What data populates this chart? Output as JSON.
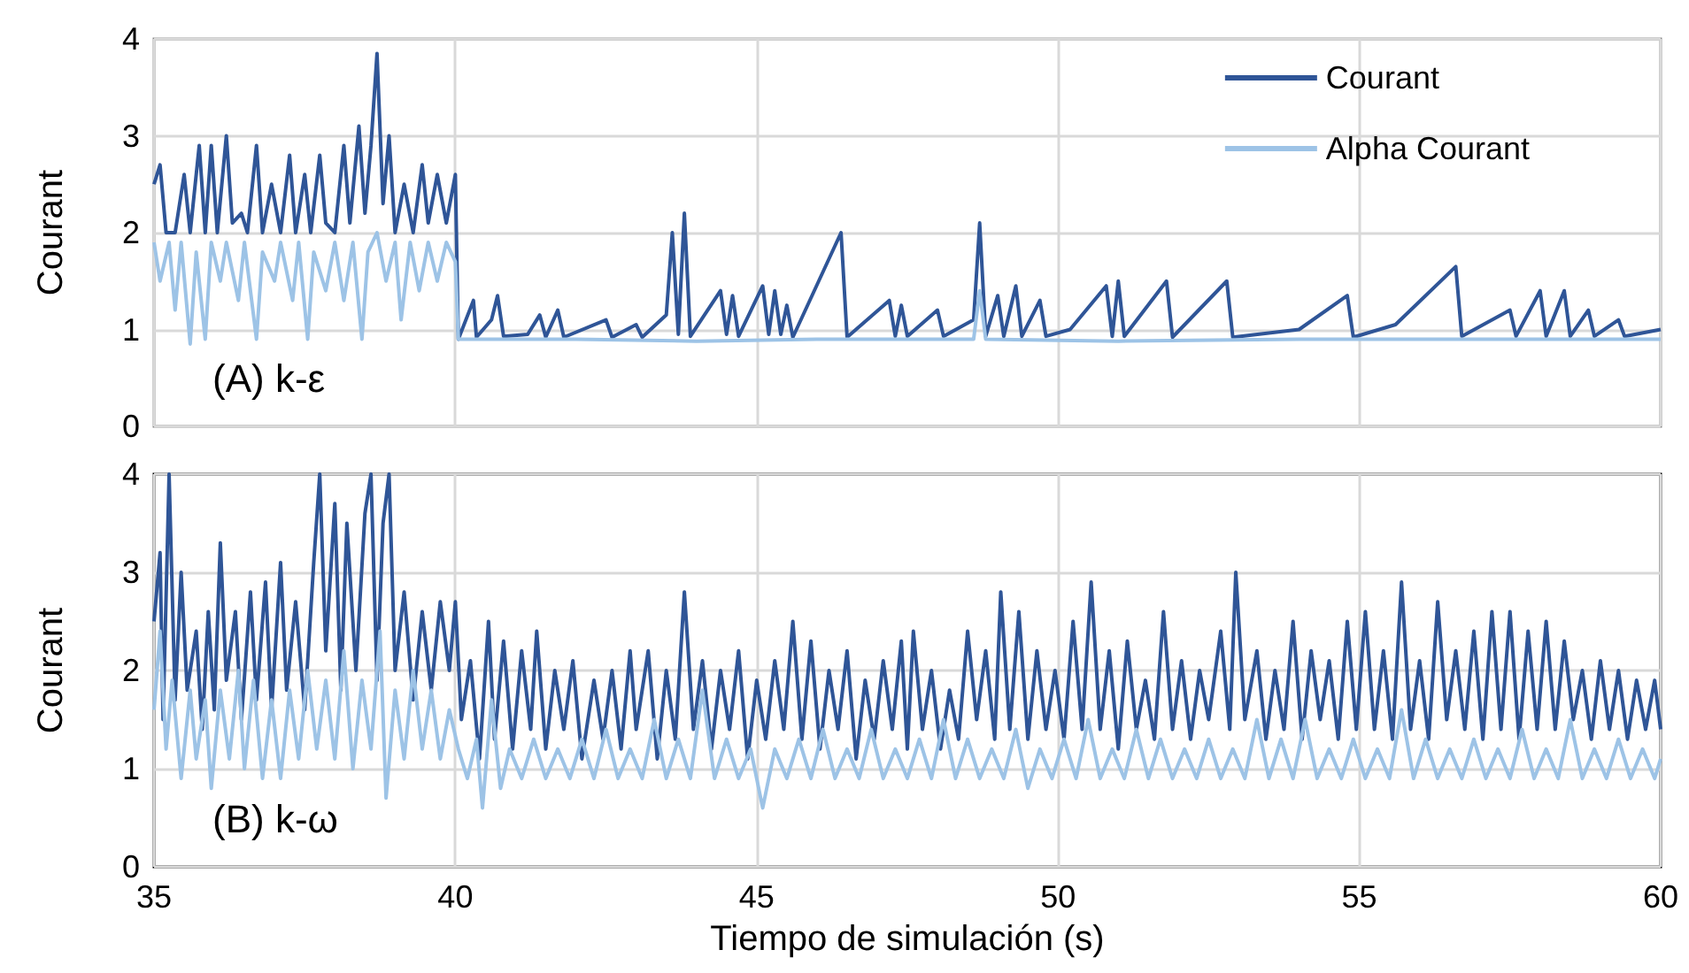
{
  "chart_data": [
    {
      "type": "line",
      "ylabel": "Courant",
      "annotations": [
        "(A) k-ε"
      ],
      "xlim": [
        35,
        60
      ],
      "xticks": [
        35,
        40,
        45,
        50,
        55,
        60
      ],
      "ylim": [
        0,
        4
      ],
      "yticks": [
        0,
        1,
        2,
        3,
        4
      ],
      "grid": true,
      "legend": "top right",
      "tick_labels": "y",
      "marker": "none",
      "line_style": "solid",
      "series": [
        {
          "name": "Courant",
          "color": "#2f5597",
          "x": [
            35.0,
            35.1,
            35.2,
            35.35,
            35.5,
            35.6,
            35.75,
            35.85,
            35.95,
            36.05,
            36.2,
            36.3,
            36.45,
            36.55,
            36.7,
            36.8,
            36.95,
            37.1,
            37.25,
            37.35,
            37.5,
            37.6,
            37.75,
            37.85,
            38.0,
            38.15,
            38.25,
            38.4,
            38.5,
            38.6,
            38.7,
            38.8,
            38.9,
            39.0,
            39.15,
            39.3,
            39.45,
            39.55,
            39.7,
            39.85,
            40.0,
            40.05,
            40.3,
            40.35,
            40.6,
            40.7,
            40.8,
            41.2,
            41.4,
            41.5,
            41.7,
            41.8,
            42.5,
            42.6,
            43.0,
            43.1,
            43.5,
            43.6,
            43.7,
            43.8,
            43.9,
            44.4,
            44.5,
            44.6,
            44.7,
            45.1,
            45.2,
            45.3,
            45.4,
            45.5,
            45.6,
            46.4,
            46.5,
            47.2,
            47.3,
            47.4,
            47.5,
            48.0,
            48.1,
            48.6,
            48.7,
            48.8,
            49.0,
            49.1,
            49.3,
            49.4,
            49.7,
            49.8,
            50.2,
            50.8,
            50.9,
            51.0,
            51.1,
            51.8,
            51.9,
            52.8,
            52.9,
            54.0,
            54.8,
            54.9,
            55.6,
            56.6,
            56.7,
            57.5,
            57.6,
            58.0,
            58.1,
            58.4,
            58.5,
            58.8,
            58.9,
            59.3,
            59.4,
            60.0
          ],
          "values": [
            2.5,
            2.7,
            2.0,
            2.0,
            2.6,
            2.0,
            2.9,
            2.0,
            2.9,
            2.0,
            3.0,
            2.1,
            2.2,
            2.0,
            2.9,
            2.0,
            2.5,
            2.0,
            2.8,
            2.0,
            2.6,
            2.0,
            2.8,
            2.1,
            2.0,
            2.9,
            2.1,
            3.1,
            2.2,
            2.9,
            3.85,
            2.3,
            3.0,
            2.0,
            2.5,
            2.0,
            2.7,
            2.1,
            2.6,
            2.1,
            2.6,
            0.9,
            1.3,
            0.92,
            1.1,
            1.35,
            0.93,
            0.95,
            1.15,
            0.92,
            1.2,
            0.92,
            1.1,
            0.92,
            1.05,
            0.92,
            1.15,
            2.0,
            0.95,
            2.2,
            0.93,
            1.4,
            0.95,
            1.35,
            0.93,
            1.45,
            0.95,
            1.4,
            0.95,
            1.25,
            0.92,
            2.0,
            0.92,
            1.3,
            0.93,
            1.25,
            0.93,
            1.2,
            0.93,
            1.1,
            2.1,
            0.93,
            1.35,
            0.93,
            1.45,
            0.93,
            1.3,
            0.93,
            1.0,
            1.45,
            0.93,
            1.5,
            0.93,
            1.5,
            0.92,
            1.5,
            0.92,
            1.0,
            1.35,
            0.92,
            1.05,
            1.65,
            0.93,
            1.2,
            0.93,
            1.4,
            0.93,
            1.4,
            0.93,
            1.2,
            0.93,
            1.1,
            0.93,
            1.0
          ]
        },
        {
          "name": "Alpha Courant",
          "color": "#9dc3e6",
          "x": [
            35.0,
            35.1,
            35.25,
            35.35,
            35.45,
            35.6,
            35.7,
            35.85,
            35.95,
            36.1,
            36.2,
            36.4,
            36.5,
            36.7,
            36.8,
            37.0,
            37.1,
            37.3,
            37.4,
            37.55,
            37.65,
            37.85,
            38.0,
            38.15,
            38.3,
            38.45,
            38.55,
            38.7,
            38.85,
            39.0,
            39.1,
            39.25,
            39.4,
            39.55,
            39.7,
            39.85,
            40.0,
            40.05,
            42,
            44,
            46,
            48.6,
            48.7,
            48.8,
            51,
            54,
            57,
            60
          ],
          "values": [
            1.9,
            1.5,
            1.9,
            1.2,
            1.9,
            0.85,
            1.8,
            0.9,
            1.9,
            1.5,
            1.9,
            1.3,
            1.9,
            0.9,
            1.8,
            1.5,
            1.9,
            1.3,
            1.9,
            0.9,
            1.8,
            1.4,
            1.9,
            1.3,
            1.9,
            0.9,
            1.8,
            2.0,
            1.5,
            1.9,
            1.1,
            1.9,
            1.4,
            1.9,
            1.5,
            1.9,
            1.7,
            0.9,
            0.9,
            0.88,
            0.9,
            0.9,
            1.4,
            0.9,
            0.88,
            0.9,
            0.9,
            0.9
          ]
        }
      ]
    },
    {
      "type": "line",
      "xlabel": "Tiempo de simulación (s)",
      "ylabel": "Courant",
      "annotations": [
        "(B) k-ω"
      ],
      "xlim": [
        35,
        60
      ],
      "xticks": [
        35,
        40,
        45,
        50,
        55,
        60
      ],
      "ylim": [
        0,
        4
      ],
      "yticks": [
        0,
        1,
        2,
        3,
        4
      ],
      "grid": true,
      "marker": "none",
      "line_style": "solid",
      "series": [
        {
          "color": "#2f5597",
          "x": [
            35.0,
            35.1,
            35.15,
            35.25,
            35.35,
            35.45,
            35.55,
            35.7,
            35.8,
            35.9,
            36.0,
            36.1,
            36.2,
            36.35,
            36.45,
            36.6,
            36.7,
            36.85,
            36.95,
            37.1,
            37.2,
            37.35,
            37.5,
            37.65,
            37.75,
            37.85,
            38.0,
            38.1,
            38.2,
            38.35,
            38.5,
            38.6,
            38.7,
            38.8,
            38.9,
            39.0,
            39.15,
            39.3,
            39.45,
            39.6,
            39.75,
            39.9,
            40.0,
            40.1,
            40.25,
            40.4,
            40.55,
            40.65,
            40.8,
            40.95,
            41.1,
            41.25,
            41.35,
            41.5,
            41.65,
            41.8,
            41.95,
            42.1,
            42.3,
            42.45,
            42.6,
            42.75,
            42.9,
            43.0,
            43.2,
            43.35,
            43.5,
            43.65,
            43.8,
            43.95,
            44.1,
            44.25,
            44.4,
            44.55,
            44.7,
            44.85,
            45.0,
            45.15,
            45.3,
            45.45,
            45.6,
            45.75,
            45.9,
            46.05,
            46.2,
            46.35,
            46.5,
            46.65,
            46.8,
            46.95,
            47.1,
            47.25,
            47.4,
            47.5,
            47.6,
            47.75,
            47.9,
            48.05,
            48.2,
            48.35,
            48.5,
            48.65,
            48.8,
            48.95,
            49.05,
            49.2,
            49.35,
            49.5,
            49.65,
            49.8,
            49.95,
            50.1,
            50.25,
            50.4,
            50.55,
            50.7,
            50.85,
            51.0,
            51.15,
            51.3,
            51.45,
            51.6,
            51.75,
            51.9,
            52.05,
            52.2,
            52.35,
            52.5,
            52.7,
            52.85,
            52.95,
            53.1,
            53.3,
            53.45,
            53.6,
            53.75,
            53.9,
            54.05,
            54.2,
            54.35,
            54.5,
            54.65,
            54.8,
            54.95,
            55.1,
            55.25,
            55.4,
            55.55,
            55.7,
            55.85,
            56.0,
            56.15,
            56.3,
            56.45,
            56.6,
            56.75,
            56.9,
            57.05,
            57.2,
            57.35,
            57.5,
            57.65,
            57.8,
            57.95,
            58.1,
            58.25,
            58.4,
            58.55,
            58.7,
            58.85,
            59.0,
            59.15,
            59.3,
            59.45,
            59.6,
            59.75,
            59.9,
            60.0
          ],
          "values": [
            2.5,
            3.2,
            1.5,
            4.0,
            1.7,
            3.0,
            1.8,
            2.4,
            1.4,
            2.6,
            1.6,
            3.3,
            1.9,
            2.6,
            1.5,
            2.8,
            1.7,
            2.9,
            1.6,
            3.1,
            1.8,
            2.7,
            1.6,
            3.1,
            4.0,
            2.2,
            3.7,
            1.8,
            3.5,
            2.0,
            3.6,
            4.0,
            1.9,
            3.5,
            4.0,
            2.0,
            2.8,
            1.7,
            2.6,
            1.8,
            2.7,
            2.0,
            2.7,
            1.5,
            2.1,
            1.1,
            2.5,
            1.3,
            2.3,
            1.2,
            2.2,
            1.4,
            2.4,
            1.2,
            2.0,
            1.4,
            2.1,
            1.1,
            1.9,
            1.3,
            2.0,
            1.2,
            2.2,
            1.4,
            2.2,
            1.1,
            2.0,
            1.3,
            2.8,
            1.4,
            2.1,
            1.2,
            2.0,
            1.4,
            2.2,
            1.1,
            1.9,
            1.3,
            2.1,
            1.4,
            2.5,
            1.3,
            2.3,
            1.2,
            2.0,
            1.4,
            2.2,
            1.1,
            1.9,
            1.3,
            2.1,
            1.4,
            2.3,
            1.2,
            2.4,
            1.4,
            2.0,
            1.2,
            1.8,
            1.3,
            2.4,
            1.5,
            2.2,
            1.3,
            2.8,
            1.4,
            2.6,
            1.3,
            2.2,
            1.4,
            2.0,
            1.3,
            2.5,
            1.4,
            2.9,
            1.4,
            2.2,
            1.2,
            2.3,
            1.4,
            1.9,
            1.3,
            2.6,
            1.4,
            2.1,
            1.3,
            2.0,
            1.5,
            2.4,
            1.4,
            3.0,
            1.5,
            2.2,
            1.3,
            2.0,
            1.4,
            2.5,
            1.3,
            2.2,
            1.5,
            2.1,
            1.3,
            2.5,
            1.4,
            2.6,
            1.4,
            2.2,
            1.3,
            2.9,
            1.4,
            2.1,
            1.3,
            2.7,
            1.5,
            2.2,
            1.4,
            2.4,
            1.3,
            2.6,
            1.4,
            2.6,
            1.3,
            2.4,
            1.4,
            2.5,
            1.4,
            2.3,
            1.5,
            2.0,
            1.3,
            2.1,
            1.4,
            2.0,
            1.3,
            1.9,
            1.4,
            1.9,
            1.4
          ]
        },
        {
          "color": "#9dc3e6",
          "x": [
            35.0,
            35.1,
            35.2,
            35.3,
            35.45,
            35.6,
            35.7,
            35.85,
            35.95,
            36.1,
            36.25,
            36.4,
            36.5,
            36.65,
            36.8,
            36.95,
            37.1,
            37.25,
            37.4,
            37.55,
            37.7,
            37.85,
            38.0,
            38.15,
            38.3,
            38.45,
            38.6,
            38.75,
            38.85,
            39.0,
            39.15,
            39.3,
            39.45,
            39.6,
            39.75,
            39.9,
            40.05,
            40.2,
            40.35,
            40.45,
            40.6,
            40.75,
            40.9,
            41.1,
            41.3,
            41.5,
            41.7,
            41.9,
            42.1,
            42.3,
            42.5,
            42.7,
            42.9,
            43.1,
            43.3,
            43.5,
            43.7,
            43.9,
            44.1,
            44.3,
            44.5,
            44.7,
            44.9,
            45.1,
            45.3,
            45.5,
            45.7,
            45.9,
            46.1,
            46.3,
            46.5,
            46.7,
            46.9,
            47.1,
            47.3,
            47.5,
            47.7,
            47.9,
            48.1,
            48.3,
            48.5,
            48.7,
            48.9,
            49.1,
            49.3,
            49.5,
            49.7,
            49.9,
            50.1,
            50.3,
            50.5,
            50.7,
            50.9,
            51.1,
            51.3,
            51.5,
            51.7,
            51.9,
            52.1,
            52.3,
            52.5,
            52.7,
            52.9,
            53.1,
            53.3,
            53.5,
            53.7,
            53.9,
            54.1,
            54.3,
            54.5,
            54.7,
            54.9,
            55.1,
            55.3,
            55.5,
            55.7,
            55.9,
            56.1,
            56.3,
            56.5,
            56.7,
            56.9,
            57.1,
            57.3,
            57.5,
            57.7,
            57.9,
            58.1,
            58.3,
            58.5,
            58.7,
            58.9,
            59.1,
            59.3,
            59.5,
            59.7,
            59.9,
            60.0
          ],
          "values": [
            1.6,
            2.4,
            1.2,
            1.9,
            0.9,
            1.8,
            1.1,
            1.7,
            0.8,
            1.8,
            1.1,
            2.0,
            1.0,
            1.9,
            0.9,
            1.7,
            0.9,
            1.8,
            1.1,
            2.0,
            1.2,
            1.9,
            1.1,
            2.2,
            1.0,
            1.9,
            1.2,
            2.4,
            0.7,
            1.8,
            1.1,
            2.0,
            1.2,
            1.8,
            1.1,
            1.6,
            1.2,
            0.9,
            1.3,
            0.6,
            1.7,
            0.8,
            1.2,
            0.9,
            1.3,
            0.9,
            1.2,
            0.9,
            1.3,
            0.9,
            1.4,
            0.9,
            1.2,
            0.9,
            1.5,
            0.9,
            1.3,
            0.9,
            1.8,
            0.9,
            1.3,
            0.9,
            1.2,
            0.6,
            1.2,
            0.9,
            1.3,
            0.9,
            1.4,
            0.9,
            1.2,
            0.9,
            1.4,
            0.9,
            1.2,
            0.9,
            1.3,
            0.9,
            1.5,
            0.9,
            1.3,
            0.9,
            1.2,
            0.9,
            1.4,
            0.8,
            1.2,
            0.9,
            1.3,
            0.9,
            1.5,
            0.9,
            1.2,
            0.9,
            1.4,
            0.9,
            1.3,
            0.9,
            1.2,
            0.9,
            1.3,
            0.9,
            1.2,
            0.9,
            1.5,
            0.9,
            1.3,
            0.9,
            1.5,
            0.9,
            1.2,
            0.9,
            1.3,
            0.9,
            1.2,
            0.9,
            1.6,
            0.9,
            1.3,
            0.9,
            1.2,
            0.9,
            1.3,
            0.9,
            1.2,
            0.9,
            1.4,
            0.9,
            1.2,
            0.9,
            1.5,
            0.9,
            1.2,
            0.9,
            1.3,
            0.9,
            1.2,
            0.9,
            1.1
          ]
        }
      ]
    }
  ]
}
